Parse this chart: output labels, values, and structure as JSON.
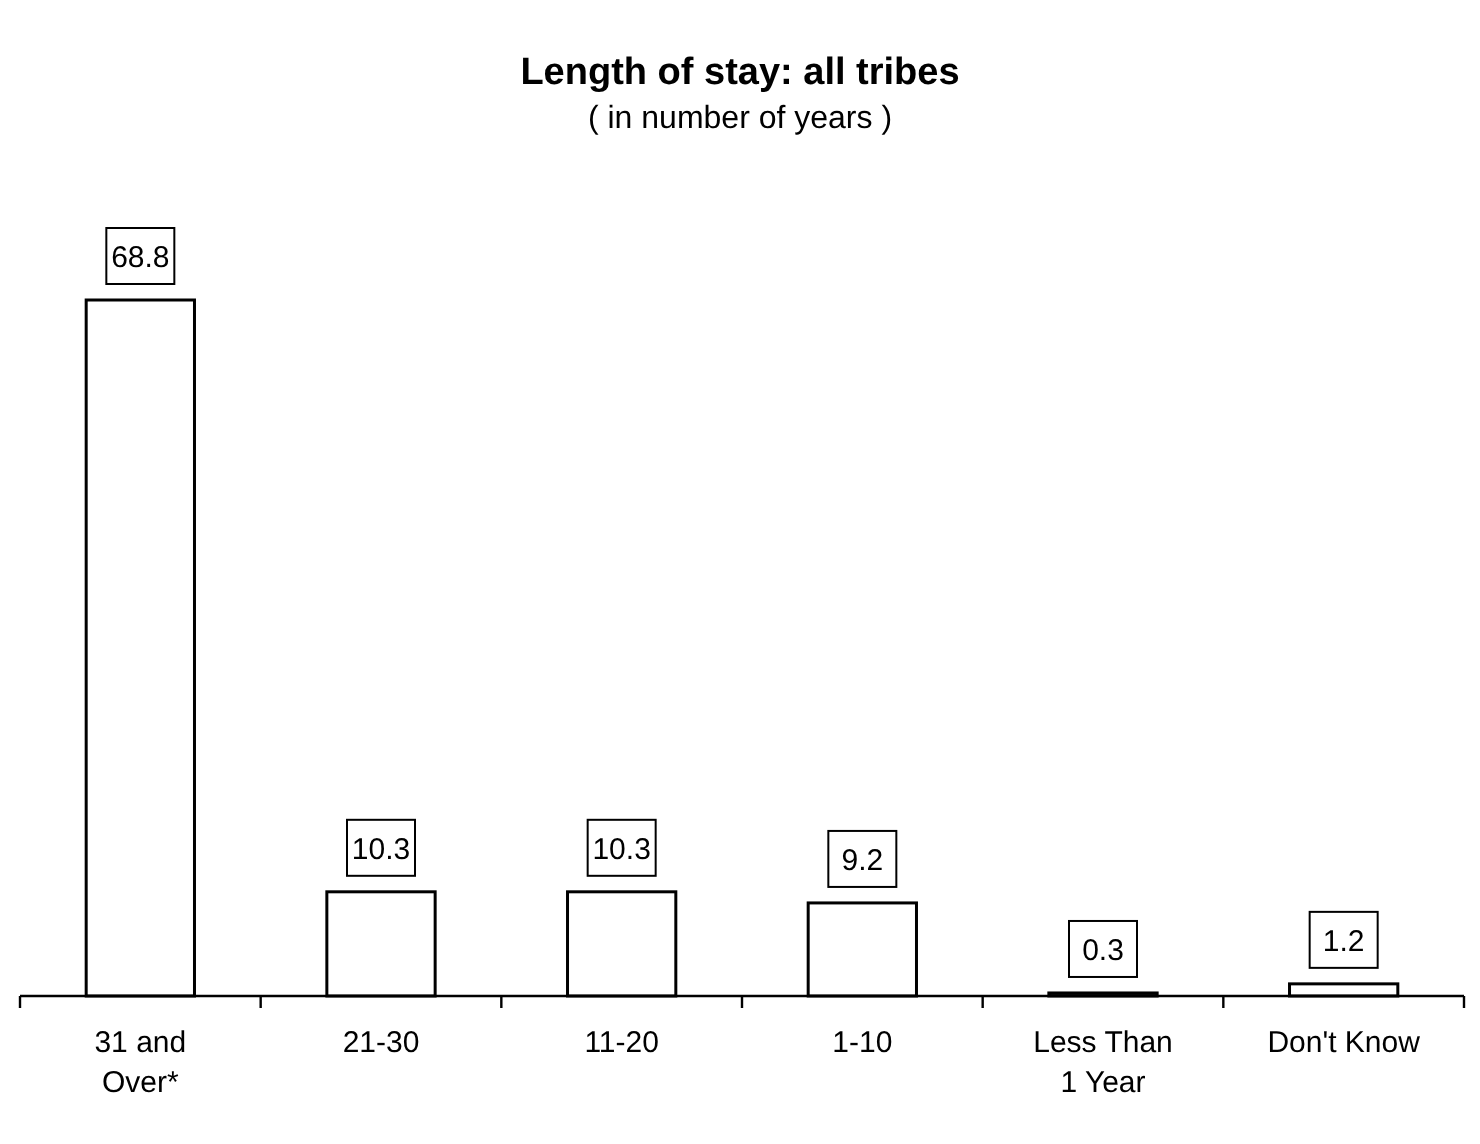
{
  "chart_data": {
    "type": "bar",
    "title": "Length of stay:  all tribes",
    "subtitle": "( in number of years )",
    "categories": [
      "31 and Over*",
      "21-30",
      "11-20",
      "1-10",
      "Less Than 1 Year",
      "Don't Know"
    ],
    "values": [
      68.8,
      10.3,
      10.3,
      9.2,
      0.3,
      1.2
    ],
    "color": "#ffffff",
    "data_labels": true
  }
}
